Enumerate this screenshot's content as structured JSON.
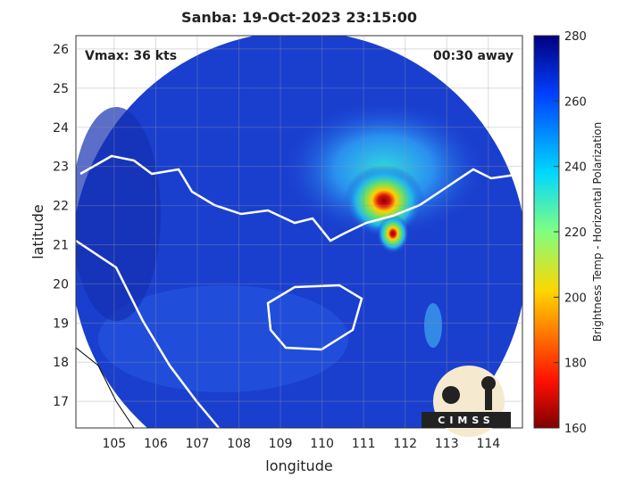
{
  "map": {
    "title": "Sanba: 19-Oct-2023 23:15:00",
    "vmax_label": "Vmax: 36 kts",
    "time_label": "00:30 away",
    "x_label": "longitude",
    "y_label": "latitude",
    "xlim": [
      104.08,
      114.82
    ],
    "ylim": [
      16.32,
      26.34
    ],
    "xticks": [
      105,
      106,
      107,
      108,
      109,
      110,
      111,
      112,
      113,
      114
    ],
    "yticks": [
      17,
      18,
      19,
      20,
      21,
      22,
      23,
      24,
      25,
      26
    ],
    "colorbar": {
      "label": "Brightness Temp - Horizontal Polarization",
      "lim": [
        160,
        280
      ],
      "ticks": [
        160,
        180,
        200,
        220,
        240,
        260,
        280
      ]
    },
    "logo_text": "CIMSS"
  }
}
